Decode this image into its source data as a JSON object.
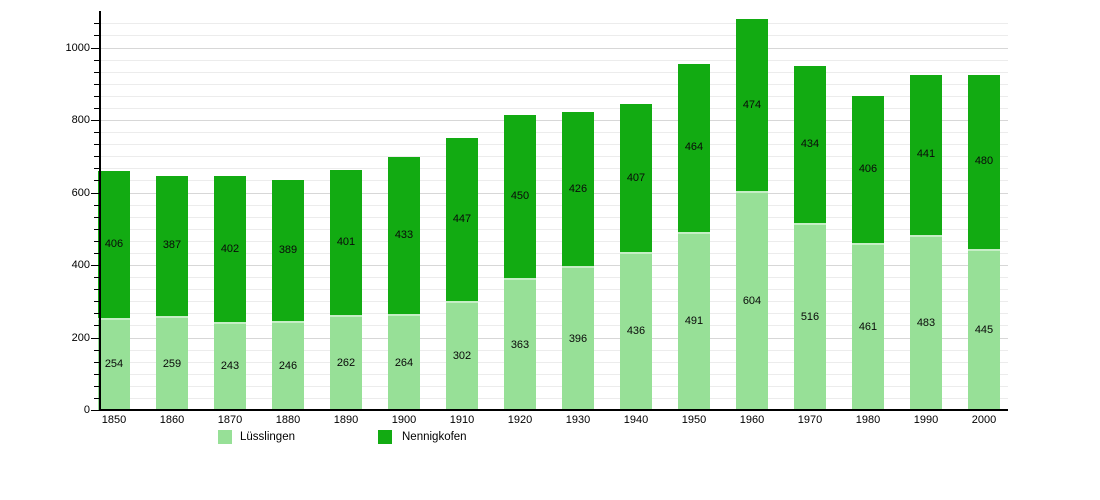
{
  "chart_data": {
    "type": "bar",
    "stacked": true,
    "title": "",
    "xlabel": "",
    "ylabel": "",
    "categories": [
      "1850",
      "1860",
      "1870",
      "1880",
      "1890",
      "1900",
      "1910",
      "1920",
      "1930",
      "1940",
      "1950",
      "1960",
      "1970",
      "1980",
      "1990",
      "2000"
    ],
    "series": [
      {
        "name": "Lüsslingen",
        "color": "#97e097",
        "values": [
          254,
          259,
          243,
          246,
          262,
          264,
          302,
          363,
          396,
          436,
          491,
          604,
          516,
          461,
          483,
          445
        ]
      },
      {
        "name": "Nennigkofen",
        "color": "#12ab12",
        "values": [
          406,
          387,
          402,
          389,
          401,
          433,
          447,
          450,
          426,
          407,
          464,
          474,
          434,
          406,
          441,
          480
        ]
      }
    ],
    "totals": [
      660,
      646,
      645,
      635,
      663,
      697,
      749,
      813,
      822,
      843,
      955,
      1078,
      950,
      867,
      924,
      925
    ],
    "ylim": [
      0,
      1097
    ],
    "yticks": [
      "0",
      "200",
      "400",
      "600",
      "800",
      "1000"
    ],
    "ytick_values": [
      0,
      200,
      400,
      600,
      800,
      1000
    ],
    "minor_divisions_per_major": 6,
    "grid": true,
    "bar_value_labels": true,
    "legend_position": "bottom"
  },
  "legend": {
    "items": [
      {
        "label": "Lüsslingen",
        "color": "#97e097"
      },
      {
        "label": "Nennigkofen",
        "color": "#12ab12"
      }
    ]
  }
}
